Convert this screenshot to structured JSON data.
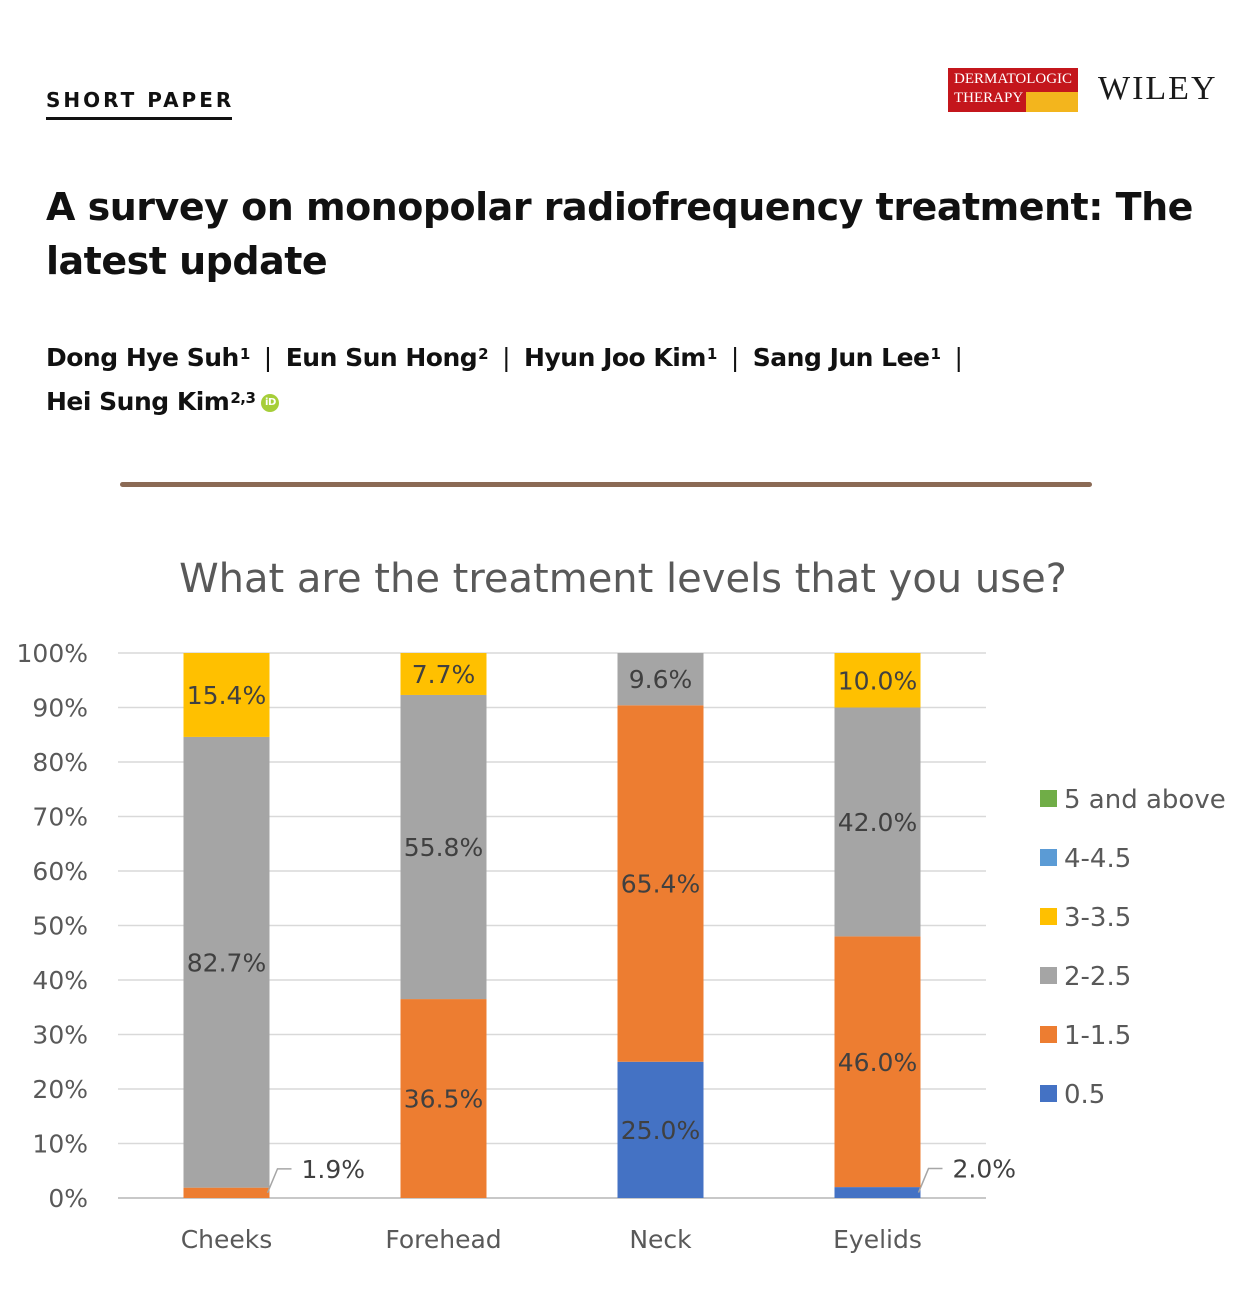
{
  "header": {
    "section_label": "SHORT PAPER",
    "journal_logo": {
      "line1": "DERMATOLOGIC",
      "line2": "THERAPY",
      "colors": [
        "#c4161c",
        "#f3b51d"
      ]
    },
    "publisher": "WILEY"
  },
  "article": {
    "title": "A survey on monopolar radiofrequency treatment: The latest update",
    "authors": [
      {
        "name": "Dong Hye Suh",
        "affil": "1"
      },
      {
        "name": "Eun Sun Hong",
        "affil": "2"
      },
      {
        "name": "Hyun Joo Kim",
        "affil": "1"
      },
      {
        "name": "Sang Jun Lee",
        "affil": "1"
      },
      {
        "name": "Hei Sung Kim",
        "affil": "2,3",
        "orcid": true
      }
    ],
    "author_separator": "|"
  },
  "chart_data": {
    "type": "bar",
    "stacked": true,
    "title": "What are the treatment levels that you use?",
    "categories": [
      "Cheeks",
      "Forehead",
      "Neck",
      "Eyelids"
    ],
    "y_ticks": [
      "0%",
      "10%",
      "20%",
      "30%",
      "40%",
      "50%",
      "60%",
      "70%",
      "80%",
      "90%",
      "100%"
    ],
    "ylim": [
      0,
      100
    ],
    "grid": true,
    "legend_position": "right",
    "series": [
      {
        "name": "0.5",
        "color": "#4472c4",
        "values": [
          0,
          0,
          25.0,
          2.0
        ],
        "labels": [
          "",
          "",
          "25.0%",
          "2.0%"
        ]
      },
      {
        "name": "1-1.5",
        "color": "#ed7d31",
        "values": [
          1.9,
          36.5,
          65.4,
          46.0
        ],
        "labels": [
          "1.9%",
          "36.5%",
          "65.4%",
          "46.0%"
        ]
      },
      {
        "name": "2-2.5",
        "color": "#a5a5a5",
        "values": [
          82.7,
          55.8,
          9.6,
          42.0
        ],
        "labels": [
          "82.7%",
          "55.8%",
          "9.6%",
          "42.0%"
        ]
      },
      {
        "name": "3-3.5",
        "color": "#ffc000",
        "values": [
          15.4,
          7.7,
          0,
          10.0
        ],
        "labels": [
          "15.4%",
          "7.7%",
          "",
          "10.0%"
        ]
      },
      {
        "name": "4-4.5",
        "color": "#5b9bd5",
        "values": [
          0,
          0,
          0,
          0
        ],
        "labels": [
          "",
          "",
          "",
          ""
        ]
      },
      {
        "name": "5 and above",
        "color": "#70ad47",
        "values": [
          0,
          0,
          0,
          0
        ],
        "labels": [
          "",
          "",
          "",
          ""
        ]
      }
    ],
    "callout_labels": [
      "1.9%",
      "2.0%"
    ]
  }
}
